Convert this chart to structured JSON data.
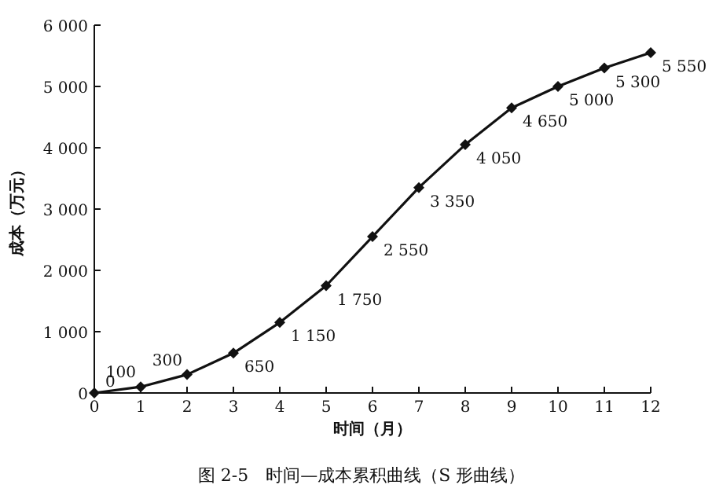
{
  "chart_data": {
    "type": "line",
    "xlabel": "时间（月）",
    "ylabel": "成本（万元）",
    "x": [
      0,
      1,
      2,
      3,
      4,
      5,
      6,
      7,
      8,
      9,
      10,
      11,
      12
    ],
    "xlim": [
      0,
      12
    ],
    "xticks": [
      0,
      1,
      2,
      3,
      4,
      5,
      6,
      7,
      8,
      9,
      10,
      11,
      12
    ],
    "ylim": [
      0,
      6000
    ],
    "yticks": [
      0,
      {
        "value": 1000,
        "label": "1 000"
      },
      {
        "value": 2000,
        "label": "2 000"
      },
      {
        "value": 3000,
        "label": "3 000"
      },
      {
        "value": 4000,
        "label": "4 000"
      },
      {
        "value": 5000,
        "label": "5 000"
      },
      {
        "value": 6000,
        "label": "6 000"
      }
    ],
    "marker": "diamond",
    "line_style": "solid",
    "series": [
      {
        "color": "#111111",
        "values": [
          0,
          100,
          300,
          650,
          1150,
          1750,
          2550,
          3350,
          4050,
          4650,
          5000,
          5300,
          5550
        ],
        "value_labels": [
          "0",
          "100",
          "300",
          "650",
          "1 150",
          "1 750",
          "2 550",
          "3 350",
          "4 050",
          "4 650",
          "5 000",
          "5 300",
          "5 550"
        ]
      }
    ],
    "annotations": [
      "图 2-5　时间—成本累积曲线（S 形曲线）"
    ]
  }
}
